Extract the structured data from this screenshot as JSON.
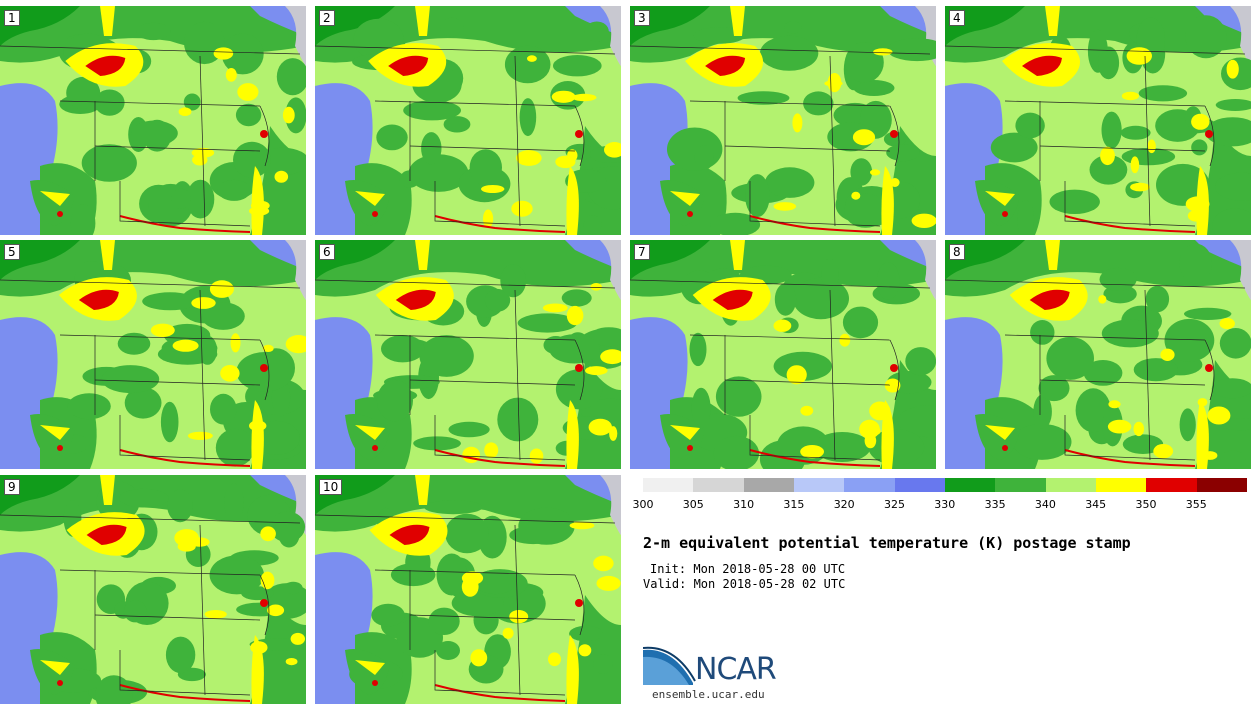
{
  "members": [
    "1",
    "2",
    "3",
    "4",
    "5",
    "6",
    "7",
    "8",
    "9",
    "10"
  ],
  "colors": {
    "ocean_blue": "#7b8ef0",
    "light_green": "#b3f26f",
    "mid_green": "#3fb33b",
    "dark_green": "#119c1b",
    "yellow": "#ffff00",
    "red": "#e00000",
    "dark_red": "#8b0000",
    "lake": "#c8c8d0",
    "border_line": "#222222"
  },
  "legend": {
    "colors": [
      "#f0f0f0",
      "#d6d6d6",
      "#a8a8a8",
      "#b8c8f8",
      "#8aa0f4",
      "#6878ee",
      "#119c1b",
      "#3fb33b",
      "#b3f26f",
      "#ffff00",
      "#e00000",
      "#8b0000"
    ],
    "ticks": [
      "300",
      "305",
      "310",
      "315",
      "320",
      "325",
      "330",
      "335",
      "340",
      "345",
      "350",
      "355"
    ]
  },
  "title": "2-m equivalent potential temperature (K) postage stamp",
  "init": "Init: Mon 2018-05-28 00 UTC",
  "valid": "Valid: Mon 2018-05-28 02 UTC",
  "logo_text": "NCAR",
  "site": "ensemble.ucar.edu"
}
